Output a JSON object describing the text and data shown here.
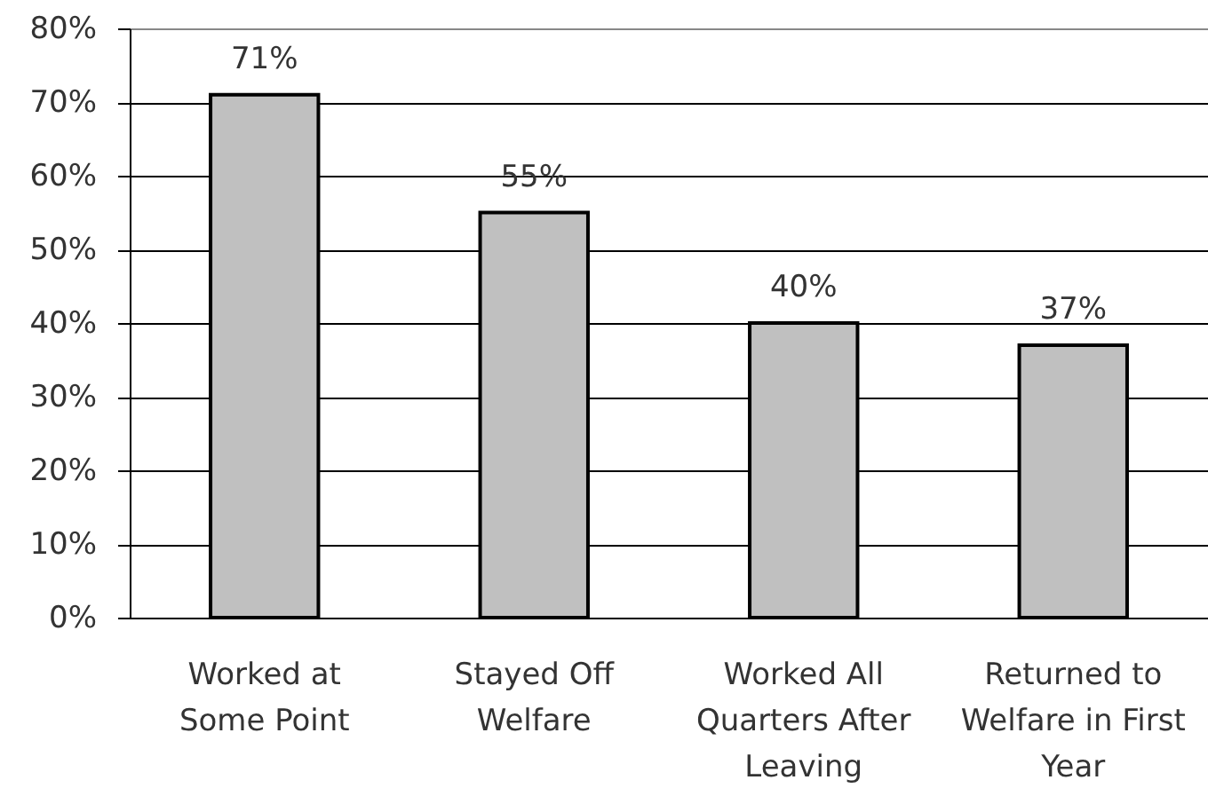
{
  "chart_data": {
    "type": "bar",
    "categories": [
      "Worked at\nSome Point",
      "Stayed Off\nWelfare",
      "Worked All\nQuarters After\nLeaving",
      "Returned to\nWelfare in First\nYear"
    ],
    "values": [
      71,
      55,
      40,
      37
    ],
    "value_labels": [
      "71%",
      "55%",
      "40%",
      "37%"
    ],
    "color": "#c0c0c0",
    "ylim": [
      0,
      80
    ],
    "yticks": [
      {
        "value": 0,
        "label": "0%"
      },
      {
        "value": 10,
        "label": "10%"
      },
      {
        "value": 20,
        "label": "20%"
      },
      {
        "value": 30,
        "label": "30%"
      },
      {
        "value": 40,
        "label": "40%"
      },
      {
        "value": 50,
        "label": "50%"
      },
      {
        "value": 60,
        "label": "60%"
      },
      {
        "value": 70,
        "label": "70%"
      },
      {
        "value": 80,
        "label": "80%"
      }
    ],
    "grid": "y"
  }
}
